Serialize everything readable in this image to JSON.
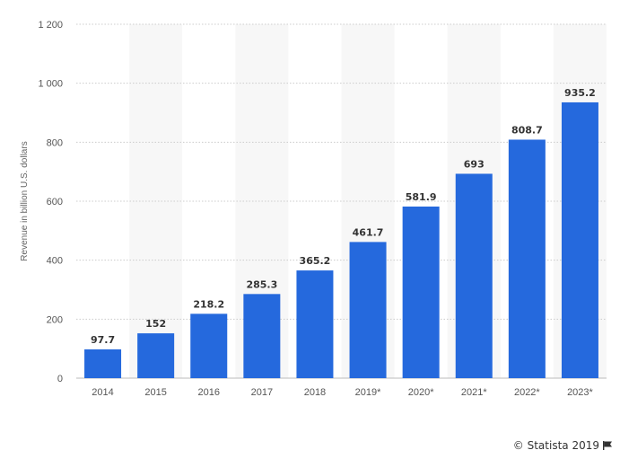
{
  "chart_data": {
    "type": "bar",
    "title": "",
    "xlabel": "",
    "ylabel": "Revenue in billion U.S. dollars",
    "categories": [
      "2014",
      "2015",
      "2016",
      "2017",
      "2018",
      "2019*",
      "2020*",
      "2021*",
      "2022*",
      "2023*"
    ],
    "values": [
      97.7,
      152,
      218.2,
      285.3,
      365.2,
      461.7,
      581.9,
      693,
      808.7,
      935.2
    ],
    "value_labels": [
      "97.7",
      "152",
      "218.2",
      "285.3",
      "365.2",
      "461.7",
      "581.9",
      "693",
      "808.7",
      "935.2"
    ],
    "ylim": [
      0,
      1200
    ],
    "yticks": [
      0,
      200,
      400,
      600,
      800,
      1000,
      1200
    ],
    "ytick_labels": [
      "0",
      "200",
      "400",
      "600",
      "800",
      "1 000",
      "1 200"
    ],
    "grid": true,
    "bar_color": "#2569dd",
    "stripe_color": "#f7f7f7",
    "grid_color": "#cccccc"
  },
  "credit": {
    "text": "© Statista 2019",
    "icon": "flag-icon"
  }
}
